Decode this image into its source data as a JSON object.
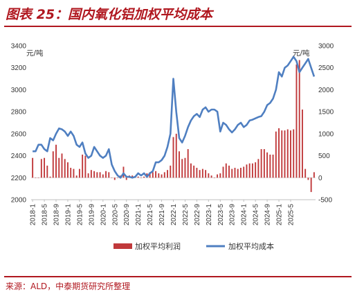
{
  "header": {
    "title": "图表 25：国内氧化铝加权平均成本"
  },
  "footer": {
    "source": "来源：ALD，中泰期货研究所整理"
  },
  "chart_data": {
    "type": "bar+line",
    "title": "",
    "left_axis": {
      "unit": "元/吨",
      "ylim": [
        2000,
        3400
      ],
      "ticks": [
        2000,
        2200,
        2400,
        2600,
        2800,
        3000,
        3200,
        3400
      ]
    },
    "right_axis": {
      "unit": "元/吨",
      "ylim": [
        -500,
        3000
      ],
      "ticks": [
        -500,
        0,
        500,
        1000,
        1500,
        2000,
        2500,
        3000
      ]
    },
    "x_tick_labels": [
      "2018-1",
      "2018-5",
      "2018-9",
      "2019-1",
      "2019-5",
      "2019-9",
      "2020-1",
      "2020-5",
      "2020-9",
      "2021-1",
      "2021-5",
      "2021-9",
      "2022-1",
      "2022-5",
      "2022-9",
      "2023-1",
      "2023-5",
      "2023-9",
      "2024-1",
      "2024-5",
      "2024-9",
      "2025-1",
      "2025-5"
    ],
    "grid": false,
    "legend_position": "bottom",
    "colors": {
      "bar": "#c0393b",
      "line": "#4f7fc1"
    },
    "series": [
      {
        "name": "加权平均利润",
        "type": "bar",
        "axis": "left",
        "start": "2018-01",
        "values": [
          2380,
          2200,
          2200,
          2370,
          2380,
          2310,
          2210,
          2440,
          2500,
          2380,
          2420,
          2370,
          2340,
          2290,
          2280,
          2220,
          2280,
          2410,
          2400,
          2240,
          2270,
          2260,
          2250,
          2250,
          2230,
          2260,
          2250,
          2200,
          2180,
          2200,
          2220,
          2300,
          2180,
          2220,
          2220,
          2210,
          2210,
          2200,
          2210,
          2240,
          2250,
          2250,
          2260,
          2240,
          2230,
          2250,
          2270,
          2310,
          2570,
          2600,
          2440,
          2370,
          2380,
          2460,
          2330,
          2310,
          2290,
          2270,
          2280,
          2270,
          2240,
          2220,
          2200,
          2230,
          2240,
          2300,
          2330,
          2310,
          2280,
          2290,
          2280,
          2290,
          2300,
          2320,
          2330,
          2330,
          2340,
          2370,
          2460,
          2460,
          2430,
          2410,
          2410,
          2620,
          2650,
          2630,
          2630,
          2640,
          2630,
          2640,
          3230,
          3270,
          2820,
          2280,
          2180,
          2070,
          2250
        ]
      },
      {
        "name": "加权平均成本",
        "type": "line",
        "axis": "right",
        "start": "2018-01",
        "values": [
          600,
          600,
          750,
          750,
          650,
          600,
          900,
          850,
          1000,
          1120,
          1100,
          1050,
          950,
          1050,
          950,
          750,
          700,
          800,
          550,
          450,
          500,
          700,
          600,
          500,
          450,
          500,
          650,
          300,
          150,
          50,
          0,
          100,
          20,
          20,
          0,
          20,
          100,
          50,
          100,
          20,
          100,
          150,
          350,
          350,
          400,
          500,
          700,
          1000,
          2250,
          1500,
          900,
          800,
          950,
          1150,
          1300,
          1400,
          1450,
          1380,
          1550,
          1600,
          1500,
          1550,
          1550,
          1500,
          1050,
          1250,
          1200,
          1100,
          1030,
          1100,
          1200,
          1250,
          1150,
          1200,
          1300,
          1320,
          1350,
          1380,
          1400,
          1500,
          1650,
          1700,
          1800,
          2000,
          2400,
          2300,
          2500,
          2550,
          2650,
          2750,
          2650,
          2400,
          2500,
          2600,
          2700,
          2500,
          2300
        ]
      }
    ]
  }
}
